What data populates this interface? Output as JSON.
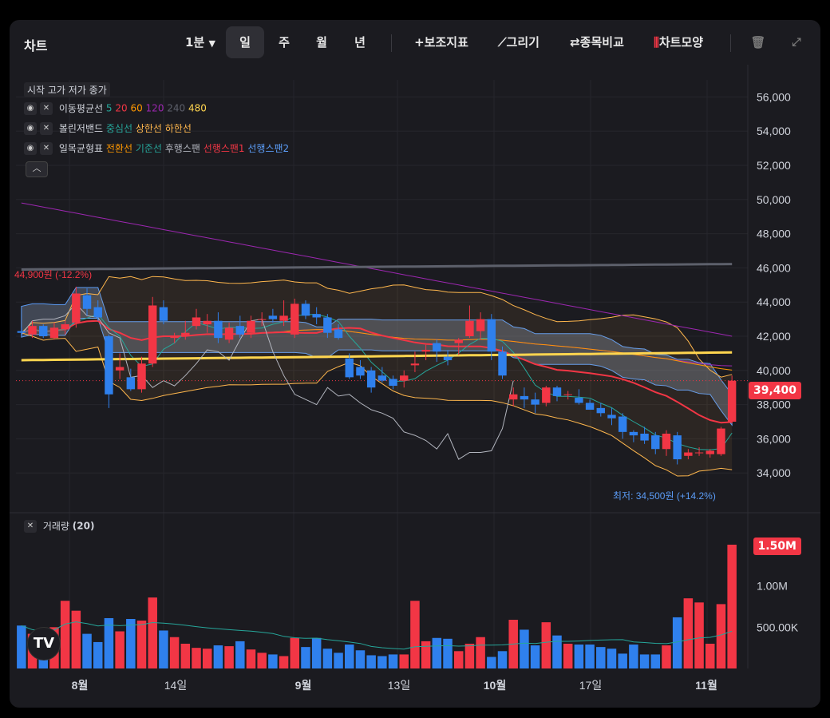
{
  "toolbar": {
    "title": "차트",
    "interval": "1분",
    "periods": [
      "일",
      "주",
      "월",
      "년"
    ],
    "selected_period": "일",
    "indicators": "+보조지표",
    "draw": "⟋그리기",
    "compare": "⇄종목비교",
    "chart_type": "차트모양"
  },
  "legend": {
    "ohlc": "시작 고가 저가 종가",
    "ma_label": "이동평균선",
    "ma_periods": [
      "5",
      "20",
      "60",
      "120",
      "240",
      "480"
    ],
    "bb_label": "볼린저밴드",
    "bb_items": [
      "중심선",
      "상한선",
      "하한선"
    ],
    "ich_label": "일목균형표",
    "ich_items": [
      "전환선",
      "기준선",
      "후행스팬",
      "선행스팬1",
      "선행스팬2"
    ],
    "volume_label": "거래량",
    "volume_period": "(20)"
  },
  "annotations": {
    "high": "44,900원 (-12.2%)",
    "low": "최저: 34,500원 (+14.2%)",
    "last_price": "39,400",
    "last_volume": "1.50M"
  },
  "colors": {
    "up": "#f23645",
    "down": "#2f80ed",
    "ma5": "#26a69a",
    "ma20": "#f23645",
    "ma60": "#ff9800",
    "ma120": "#9c27b0",
    "ma240": "#5d606b",
    "ma480": "#ffd54f"
  },
  "chart_data": {
    "type": "candlestick",
    "y_axis": [
      "56,000",
      "54,000",
      "52,000",
      "50,000",
      "48,000",
      "46,000",
      "44,000",
      "42,000",
      "40,000",
      "38,000",
      "36,000",
      "34,000"
    ],
    "ylim": [
      33000,
      57000
    ],
    "volume_axis": [
      "1.50M",
      "1.00M",
      "500.00K"
    ],
    "x_labels": [
      "8월",
      "14일",
      "9월",
      "13일",
      "10월",
      "17일",
      "11월"
    ],
    "candles": [
      [
        42300,
        42500,
        42000,
        42200
      ],
      [
        42100,
        42900,
        41900,
        42600
      ],
      [
        42600,
        42700,
        41900,
        42000
      ],
      [
        41900,
        42800,
        41800,
        42500
      ],
      [
        42400,
        42900,
        42100,
        42700
      ],
      [
        42800,
        44900,
        42500,
        44500
      ],
      [
        44400,
        44800,
        43200,
        43600
      ],
      [
        43700,
        44100,
        42900,
        43100
      ],
      [
        42000,
        42100,
        37800,
        38600
      ],
      [
        40000,
        41000,
        39500,
        40200
      ],
      [
        39600,
        40100,
        38800,
        38900
      ],
      [
        38900,
        40800,
        38700,
        40400
      ],
      [
        40400,
        44300,
        40200,
        43800
      ],
      [
        43700,
        44100,
        42700,
        42900
      ],
      [
        41900,
        42200,
        41600,
        42000
      ],
      [
        42000,
        42900,
        41800,
        42200
      ],
      [
        42600,
        43600,
        42400,
        43100
      ],
      [
        42700,
        43300,
        42200,
        42900
      ],
      [
        42900,
        43400,
        41600,
        41900
      ],
      [
        41800,
        42800,
        41600,
        42500
      ],
      [
        42600,
        43200,
        41900,
        42100
      ],
      [
        42200,
        43200,
        41900,
        42900
      ],
      [
        43000,
        43400,
        42600,
        43000
      ],
      [
        43200,
        43600,
        42800,
        43000
      ],
      [
        42900,
        44100,
        42600,
        43200
      ],
      [
        42100,
        44200,
        41900,
        43900
      ],
      [
        43900,
        44100,
        43000,
        43200
      ],
      [
        43300,
        43700,
        42700,
        43100
      ],
      [
        43100,
        43300,
        41900,
        42200
      ],
      [
        42400,
        42700,
        41800,
        41900
      ],
      [
        40700,
        41000,
        39500,
        39600
      ],
      [
        40200,
        40600,
        39500,
        39700
      ],
      [
        40000,
        40200,
        38700,
        39000
      ],
      [
        39700,
        40200,
        39300,
        39400
      ],
      [
        39500,
        39700,
        38900,
        39100
      ],
      [
        39400,
        40000,
        39000,
        39700
      ],
      [
        40300,
        41100,
        39900,
        40400
      ],
      [
        41100,
        41500,
        40600,
        41200
      ],
      [
        41600,
        41800,
        40500,
        41100
      ],
      [
        40800,
        41200,
        40300,
        40600
      ],
      [
        41600,
        41900,
        40900,
        41800
      ],
      [
        42000,
        43800,
        41900,
        42900
      ],
      [
        42300,
        43400,
        41800,
        43000
      ],
      [
        43000,
        43300,
        40600,
        41100
      ],
      [
        41100,
        41400,
        39500,
        39700
      ],
      [
        38300,
        39000,
        37900,
        38600
      ],
      [
        38500,
        39000,
        37800,
        38300
      ],
      [
        38300,
        38700,
        37500,
        38000
      ],
      [
        38100,
        39100,
        37900,
        39000
      ],
      [
        39000,
        39100,
        38200,
        38500
      ],
      [
        38600,
        38800,
        38300,
        38600
      ],
      [
        38400,
        38900,
        38000,
        38100
      ],
      [
        38100,
        38300,
        37700,
        37700
      ],
      [
        37800,
        38100,
        37300,
        37500
      ],
      [
        37400,
        37800,
        36800,
        37200
      ],
      [
        37300,
        37500,
        36000,
        36400
      ],
      [
        36400,
        36500,
        35800,
        36200
      ],
      [
        36300,
        36700,
        35700,
        35900
      ],
      [
        36200,
        36400,
        35100,
        35400
      ],
      [
        35400,
        36500,
        35000,
        36300
      ],
      [
        36200,
        36400,
        34500,
        34800
      ],
      [
        35000,
        35400,
        34800,
        35200
      ],
      [
        35200,
        35500,
        35000,
        35200
      ],
      [
        35100,
        35400,
        34900,
        35300
      ],
      [
        35100,
        36700,
        35000,
        36600
      ],
      [
        37000,
        39700,
        36900,
        39400
      ]
    ],
    "volume": [
      520000,
      420000,
      430000,
      500000,
      820000,
      700000,
      420000,
      320000,
      610000,
      450000,
      600000,
      580000,
      860000,
      460000,
      380000,
      300000,
      250000,
      240000,
      280000,
      270000,
      330000,
      230000,
      190000,
      170000,
      150000,
      370000,
      260000,
      370000,
      240000,
      190000,
      290000,
      220000,
      160000,
      150000,
      170000,
      170000,
      820000,
      330000,
      370000,
      360000,
      210000,
      300000,
      380000,
      140000,
      210000,
      590000,
      470000,
      280000,
      560000,
      400000,
      300000,
      290000,
      290000,
      260000,
      240000,
      180000,
      290000,
      170000,
      170000,
      280000,
      620000,
      850000,
      800000,
      300000,
      780000,
      1500000
    ]
  }
}
